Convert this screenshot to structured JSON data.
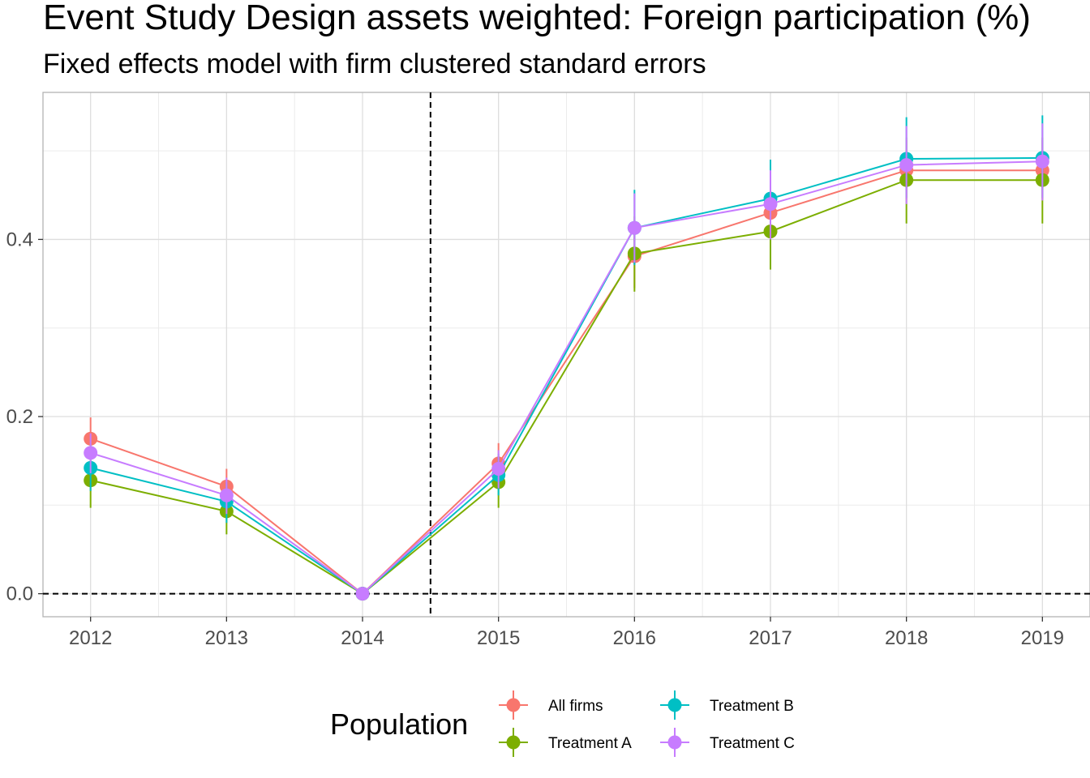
{
  "chart_data": {
    "type": "line",
    "title": "Event Study Design assets weighted: Foreign participation (%)",
    "subtitle": "Fixed effects model with firm clustered standard errors",
    "xlabel": "",
    "ylabel": "",
    "x": [
      2012,
      2013,
      2014,
      2015,
      2016,
      2017,
      2018,
      2019
    ],
    "y_ticks": [
      0.0,
      0.2,
      0.4
    ],
    "y_tick_labels": [
      "0.0",
      "0.2",
      "0.4"
    ],
    "ylim": [
      -0.026,
      0.566
    ],
    "xlim": [
      2011.65,
      2019.35
    ],
    "vline_x": 2014.5,
    "hline_y": 0,
    "grid": true,
    "legend": {
      "title": "Population",
      "position": "bottom"
    },
    "series": [
      {
        "name": "All firms",
        "color": "#F8766D",
        "values": [
          0.175,
          0.121,
          0.0,
          0.147,
          0.381,
          0.43,
          0.478,
          0.478
        ],
        "lower": [
          0.152,
          0.101,
          0.0,
          0.125,
          0.345,
          0.398,
          0.445,
          0.445
        ],
        "upper": [
          0.199,
          0.141,
          0.0,
          0.17,
          0.418,
          0.462,
          0.512,
          0.512
        ]
      },
      {
        "name": "Treatment A",
        "color": "#7CAE00",
        "values": [
          0.128,
          0.093,
          0.0,
          0.126,
          0.384,
          0.409,
          0.467,
          0.467
        ],
        "lower": [
          0.097,
          0.067,
          0.0,
          0.097,
          0.341,
          0.366,
          0.418,
          0.418
        ],
        "upper": [
          0.158,
          0.118,
          0.0,
          0.154,
          0.426,
          0.451,
          0.515,
          0.515
        ]
      },
      {
        "name": "Treatment B",
        "color": "#00BFC4",
        "values": [
          0.142,
          0.104,
          0.0,
          0.134,
          0.413,
          0.446,
          0.491,
          0.492
        ],
        "lower": [
          0.116,
          0.08,
          0.0,
          0.111,
          0.371,
          0.402,
          0.447,
          0.447
        ],
        "upper": [
          0.168,
          0.126,
          0.0,
          0.158,
          0.456,
          0.49,
          0.538,
          0.54
        ]
      },
      {
        "name": "Treatment C",
        "color": "#C77CFF",
        "values": [
          0.159,
          0.111,
          0.0,
          0.141,
          0.413,
          0.44,
          0.484,
          0.488
        ],
        "lower": [
          0.136,
          0.09,
          0.0,
          0.119,
          0.374,
          0.4,
          0.44,
          0.444
        ],
        "upper": [
          0.181,
          0.131,
          0.0,
          0.162,
          0.452,
          0.478,
          0.528,
          0.531
        ]
      }
    ]
  }
}
